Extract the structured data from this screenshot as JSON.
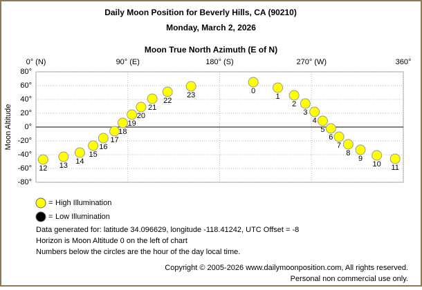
{
  "chart_data": {
    "type": "scatter",
    "title": "Daily Moon Position for Beverly Hills, CA (90210)",
    "subtitle": "Monday, March 2, 2026",
    "x_label": "Moon True North Azimuth (E of N)",
    "y_label": "Moon Altitude",
    "xlim": [
      0,
      360
    ],
    "ylim": [
      -80,
      80
    ],
    "xticks": [
      {
        "value": 0,
        "label": "0° (N)"
      },
      {
        "value": 90,
        "label": "90° (E)"
      },
      {
        "value": 180,
        "label": "180° (S)"
      },
      {
        "value": 270,
        "label": "270° (W)"
      },
      {
        "value": 360,
        "label": "360°"
      }
    ],
    "yticks": [
      {
        "value": -80,
        "label": "-80°"
      },
      {
        "value": -60,
        "label": "-60°"
      },
      {
        "value": -40,
        "label": "-40°"
      },
      {
        "value": -20,
        "label": "-20°"
      },
      {
        "value": 0,
        "label": "0°"
      },
      {
        "value": 20,
        "label": "20°"
      },
      {
        "value": 40,
        "label": "40°"
      },
      {
        "value": 60,
        "label": "60°"
      },
      {
        "value": 80,
        "label": "80°"
      }
    ],
    "grid": true,
    "series": [
      {
        "name": "High Illumination",
        "color": "#ffff00",
        "x": [
          213,
          237,
          253,
          264,
          273,
          281,
          289,
          297,
          306,
          318,
          334,
          352,
          7,
          27,
          43,
          56,
          66,
          77,
          85,
          94,
          103,
          114,
          129,
          152
        ],
        "values": [
          65,
          57,
          46,
          34,
          22,
          9,
          -2,
          -14,
          -25,
          -33,
          -41,
          -46,
          -47,
          -43,
          -37,
          -27,
          -16,
          -6,
          6,
          18,
          29,
          41,
          51,
          59
        ],
        "point_labels": [
          0,
          1,
          2,
          3,
          4,
          5,
          6,
          7,
          8,
          9,
          10,
          11,
          12,
          13,
          14,
          15,
          16,
          17,
          18,
          19,
          20,
          21,
          22,
          23
        ]
      },
      {
        "name": "Low Illumination",
        "color": "#000000",
        "x": [],
        "values": [],
        "point_labels": []
      }
    ],
    "notes": [
      "Data generated for: latitude 34.096629, longitude -118.41242, UTC Offset = -8",
      "Horizon is Moon Altitude 0 on the left of chart",
      "Numbers below the circles are the hour of the day local time."
    ],
    "copyright": [
      "Copyright © 2005-2026 www.dailymoonposition.com, All rights reserved.",
      "Personal non commercial use only."
    ]
  }
}
